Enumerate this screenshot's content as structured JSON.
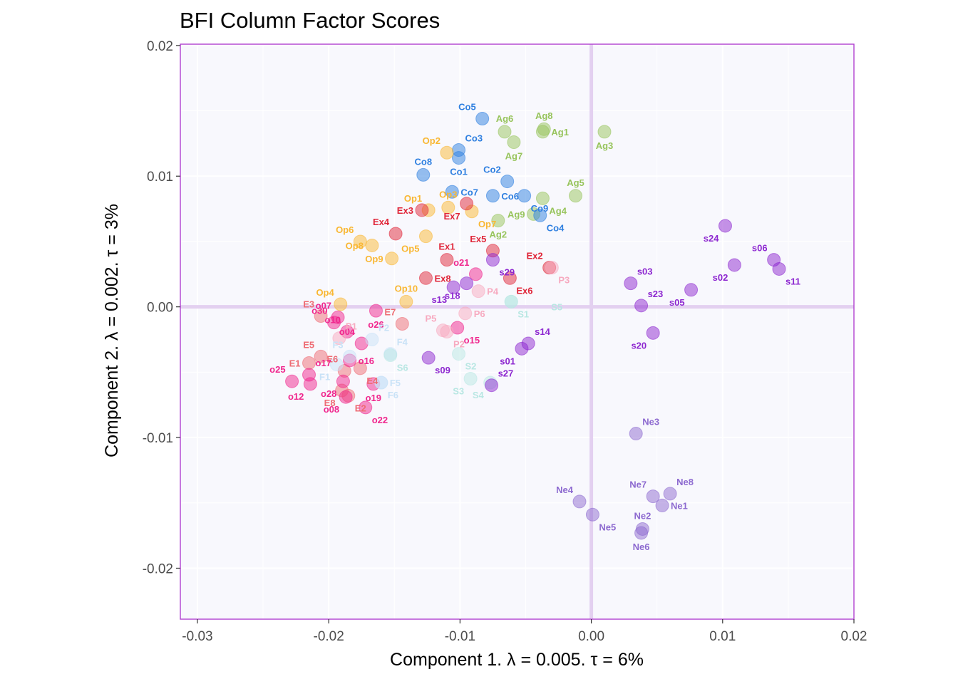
{
  "chart_data": {
    "type": "scatter",
    "title": "BFI Column Factor Scores",
    "xlabel": "Component 1.   λ = 0.005.  τ = 6%",
    "ylabel": "Component 2.   λ = 0.002.  τ = 3%",
    "xlim": [
      -0.0313,
      0.02
    ],
    "ylim": [
      -0.0239,
      0.0201
    ],
    "x_ticks": [
      -0.03,
      -0.02,
      -0.01,
      0.0,
      0.01,
      0.02
    ],
    "x_tick_labels": [
      "-0.03",
      "-0.02",
      "-0.01",
      "0.00",
      "0.01",
      "0.02"
    ],
    "y_ticks": [
      -0.02,
      -0.01,
      0.0,
      0.01,
      0.02
    ],
    "y_tick_labels": [
      "-0.02",
      "-0.01",
      "0.00",
      "0.01",
      "0.02"
    ],
    "grid": true,
    "reference_lines": {
      "x": 0,
      "y": 0,
      "color": "#e3d0f0"
    },
    "colors": {
      "panel_background": "#f8f8fd",
      "panel_border": "#b040d0",
      "grid": "#ffffff",
      "Ag": "#97c45c",
      "Co": "#2e7fe0",
      "Op": "#f9b733",
      "Ex": "#e0273a",
      "E": "#ee6c74",
      "o": "#f0268d",
      "P": "#f7aac0",
      "F": "#c9e2f7",
      "S": "#b9e7e3",
      "s": "#8d27d0",
      "Ne": "#8d6ad0"
    },
    "points": [
      {
        "label": "Ag1",
        "x": -0.0037,
        "y": 0.0134,
        "group": "Ag",
        "pos": "right"
      },
      {
        "label": "Ag3",
        "x": 0.001,
        "y": 0.0134,
        "group": "Ag",
        "pos": "below"
      },
      {
        "label": "Ag6",
        "x": -0.0066,
        "y": 0.0134,
        "group": "Ag",
        "pos": "above"
      },
      {
        "label": "Ag8",
        "x": -0.0036,
        "y": 0.0136,
        "group": "Ag",
        "pos": "above"
      },
      {
        "label": "Ag7",
        "x": -0.0059,
        "y": 0.0126,
        "group": "Ag",
        "pos": "below"
      },
      {
        "label": "Ag5",
        "x": -0.0012,
        "y": 0.0085,
        "group": "Ag",
        "pos": "above"
      },
      {
        "label": "Ag4",
        "x": -0.0037,
        "y": 0.0083,
        "group": "Ag",
        "pos": "below-right"
      },
      {
        "label": "Ag9",
        "x": -0.0044,
        "y": 0.0071,
        "group": "Ag",
        "pos": "left"
      },
      {
        "label": "Ag2",
        "x": -0.0071,
        "y": 0.0066,
        "group": "Ag",
        "pos": "below"
      },
      {
        "label": "Co5",
        "x": -0.0083,
        "y": 0.0144,
        "group": "Co",
        "pos": "above-left"
      },
      {
        "label": "Co3",
        "x": -0.0101,
        "y": 0.012,
        "group": "Co",
        "pos": "above-right"
      },
      {
        "label": "Co1",
        "x": -0.0101,
        "y": 0.0114,
        "group": "Co",
        "pos": "below"
      },
      {
        "label": "Co8",
        "x": -0.0128,
        "y": 0.0101,
        "group": "Co",
        "pos": "above"
      },
      {
        "label": "Co2",
        "x": -0.0064,
        "y": 0.0096,
        "group": "Co",
        "pos": "above-left"
      },
      {
        "label": "Co7",
        "x": -0.0106,
        "y": 0.0088,
        "group": "Co",
        "pos": "right"
      },
      {
        "label": "Co6",
        "x": -0.0075,
        "y": 0.0085,
        "group": "Co",
        "pos": "right"
      },
      {
        "label": "Co9",
        "x": -0.0051,
        "y": 0.0085,
        "group": "Co",
        "pos": "below-right"
      },
      {
        "label": "Co4",
        "x": -0.0039,
        "y": 0.007,
        "group": "Co",
        "pos": "below-right"
      },
      {
        "label": "Op2",
        "x": -0.011,
        "y": 0.0118,
        "group": "Op",
        "pos": "above-left"
      },
      {
        "label": "Op1",
        "x": -0.0124,
        "y": 0.0074,
        "group": "Op",
        "pos": "above-left"
      },
      {
        "label": "Op3",
        "x": -0.0109,
        "y": 0.0076,
        "group": "Op",
        "pos": "above"
      },
      {
        "label": "Op7",
        "x": -0.0091,
        "y": 0.0073,
        "group": "Op",
        "pos": "below-right"
      },
      {
        "label": "Op6",
        "x": -0.0176,
        "y": 0.005,
        "group": "Op",
        "pos": "above-left"
      },
      {
        "label": "Op8",
        "x": -0.0167,
        "y": 0.0047,
        "group": "Op",
        "pos": "left"
      },
      {
        "label": "Op5",
        "x": -0.0126,
        "y": 0.0054,
        "group": "Op",
        "pos": "below-left"
      },
      {
        "label": "Op9",
        "x": -0.0152,
        "y": 0.0037,
        "group": "Op",
        "pos": "left"
      },
      {
        "label": "Op10",
        "x": -0.0141,
        "y": 0.0004,
        "group": "Op",
        "pos": "above"
      },
      {
        "label": "Op4",
        "x": -0.0191,
        "y": 0.0002,
        "group": "Op",
        "pos": "above-left"
      },
      {
        "label": "Ex3",
        "x": -0.0129,
        "y": 0.0074,
        "group": "Ex",
        "pos": "left"
      },
      {
        "label": "Ex7",
        "x": -0.0095,
        "y": 0.0079,
        "group": "Ex",
        "pos": "below-left"
      },
      {
        "label": "Ex4",
        "x": -0.0149,
        "y": 0.0056,
        "group": "Ex",
        "pos": "above-left"
      },
      {
        "label": "Ex1",
        "x": -0.011,
        "y": 0.0036,
        "group": "Ex",
        "pos": "above"
      },
      {
        "label": "Ex5",
        "x": -0.0075,
        "y": 0.0043,
        "group": "Ex",
        "pos": "above-left"
      },
      {
        "label": "Ex2",
        "x": -0.0032,
        "y": 0.003,
        "group": "Ex",
        "pos": "above-left"
      },
      {
        "label": "Ex8",
        "x": -0.0126,
        "y": 0.0022,
        "group": "Ex",
        "pos": "right"
      },
      {
        "label": "Ex6",
        "x": -0.0062,
        "y": 0.0022,
        "group": "Ex",
        "pos": "below-right"
      },
      {
        "label": "E3",
        "x": -0.0206,
        "y": -0.0007,
        "group": "E",
        "pos": "above-left"
      },
      {
        "label": "E5",
        "x": -0.0206,
        "y": -0.0038,
        "group": "E",
        "pos": "above-left"
      },
      {
        "label": "E1",
        "x": -0.0215,
        "y": -0.0043,
        "group": "E",
        "pos": "left"
      },
      {
        "label": "E6",
        "x": -0.0188,
        "y": -0.0049,
        "group": "E",
        "pos": "above-left"
      },
      {
        "label": "E4",
        "x": -0.0176,
        "y": -0.0047,
        "group": "E",
        "pos": "below-right"
      },
      {
        "label": "E7",
        "x": -0.0144,
        "y": -0.0013,
        "group": "E",
        "pos": "above-left"
      },
      {
        "label": "E2",
        "x": -0.0185,
        "y": -0.0068,
        "group": "E",
        "pos": "below-right"
      },
      {
        "label": "E8",
        "x": -0.019,
        "y": -0.0064,
        "group": "E",
        "pos": "below-left"
      },
      {
        "label": "o30",
        "x": -0.0196,
        "y": -0.0012,
        "group": "o",
        "pos": "above-left"
      },
      {
        "label": "o10",
        "x": -0.0186,
        "y": -0.0019,
        "group": "o",
        "pos": "above-left"
      },
      {
        "label": "o07",
        "x": -0.0193,
        "y": -0.0008,
        "group": "o",
        "pos": "above-left"
      },
      {
        "label": "o04",
        "x": -0.0175,
        "y": -0.0028,
        "group": "o",
        "pos": "above-left"
      },
      {
        "label": "o17",
        "x": -0.0215,
        "y": -0.0052,
        "group": "o",
        "pos": "above-right"
      },
      {
        "label": "o16",
        "x": -0.0184,
        "y": -0.0041,
        "group": "o",
        "pos": "right"
      },
      {
        "label": "o25",
        "x": -0.0228,
        "y": -0.0057,
        "group": "o",
        "pos": "above-left"
      },
      {
        "label": "o12",
        "x": -0.0214,
        "y": -0.0059,
        "group": "o",
        "pos": "below-left"
      },
      {
        "label": "o28",
        "x": -0.0189,
        "y": -0.0057,
        "group": "o",
        "pos": "below-left"
      },
      {
        "label": "o08",
        "x": -0.0187,
        "y": -0.0069,
        "group": "o",
        "pos": "below-left"
      },
      {
        "label": "o22",
        "x": -0.0172,
        "y": -0.0077,
        "group": "o",
        "pos": "below-right"
      },
      {
        "label": "o19",
        "x": -0.0166,
        "y": -0.0059,
        "group": "o",
        "pos": "below"
      },
      {
        "label": "o26",
        "x": -0.0164,
        "y": -0.0003,
        "group": "o",
        "pos": "below"
      },
      {
        "label": "o15",
        "x": -0.0102,
        "y": -0.0016,
        "group": "o",
        "pos": "below-right"
      },
      {
        "label": "o21",
        "x": -0.0088,
        "y": 0.0025,
        "group": "o",
        "pos": "above-left"
      },
      {
        "label": "P1",
        "x": -0.0192,
        "y": -0.0024,
        "group": "P",
        "pos": "above-right"
      },
      {
        "label": "P5",
        "x": -0.0113,
        "y": -0.0018,
        "group": "P",
        "pos": "above-left"
      },
      {
        "label": "P2",
        "x": -0.011,
        "y": -0.0019,
        "group": "P",
        "pos": "below-right"
      },
      {
        "label": "P4",
        "x": -0.0086,
        "y": 0.0012,
        "group": "P",
        "pos": "right"
      },
      {
        "label": "P6",
        "x": -0.0096,
        "y": -0.0005,
        "group": "P",
        "pos": "right"
      },
      {
        "label": "P3",
        "x": -0.003,
        "y": 0.003,
        "group": "P",
        "pos": "below-right"
      },
      {
        "label": "F1",
        "x": -0.0194,
        "y": -0.0044,
        "group": "F",
        "pos": "below-left"
      },
      {
        "label": "F2",
        "x": -0.0167,
        "y": -0.0025,
        "group": "F",
        "pos": "above-right"
      },
      {
        "label": "F3",
        "x": -0.0184,
        "y": -0.0038,
        "group": "F",
        "pos": "above-left"
      },
      {
        "label": "F4",
        "x": -0.0153,
        "y": -0.0036,
        "group": "F",
        "pos": "above-right"
      },
      {
        "label": "F5",
        "x": -0.016,
        "y": -0.0058,
        "group": "F",
        "pos": "right"
      },
      {
        "label": "F6",
        "x": -0.016,
        "y": -0.0058,
        "group": "F",
        "pos": "below-right"
      },
      {
        "label": "S1",
        "x": -0.0061,
        "y": 0.0004,
        "group": "S",
        "pos": "below-right"
      },
      {
        "label": "S5",
        "x": -0.0061,
        "y": 0.0004,
        "group": "S",
        "pos": "far-right"
      },
      {
        "label": "S6",
        "x": -0.0153,
        "y": -0.0037,
        "group": "S",
        "pos": "below-right"
      },
      {
        "label": "S2",
        "x": -0.0101,
        "y": -0.0036,
        "group": "S",
        "pos": "below-right"
      },
      {
        "label": "S3",
        "x": -0.0092,
        "y": -0.0055,
        "group": "S",
        "pos": "below-left"
      },
      {
        "label": "S4",
        "x": -0.0077,
        "y": -0.0058,
        "group": "S",
        "pos": "below-left"
      },
      {
        "label": "s24",
        "x": 0.0102,
        "y": 0.0062,
        "group": "s",
        "pos": "below-left"
      },
      {
        "label": "s06",
        "x": 0.0139,
        "y": 0.0036,
        "group": "s",
        "pos": "above-left"
      },
      {
        "label": "s11",
        "x": 0.0143,
        "y": 0.0029,
        "group": "s",
        "pos": "below-right"
      },
      {
        "label": "s02",
        "x": 0.0109,
        "y": 0.0032,
        "group": "s",
        "pos": "below-left"
      },
      {
        "label": "s05",
        "x": 0.0076,
        "y": 0.0013,
        "group": "s",
        "pos": "below-left"
      },
      {
        "label": "s03",
        "x": 0.003,
        "y": 0.0018,
        "group": "s",
        "pos": "above-right"
      },
      {
        "label": "s23",
        "x": 0.0038,
        "y": 0.0001,
        "group": "s",
        "pos": "above-right"
      },
      {
        "label": "s20",
        "x": 0.0047,
        "y": -0.002,
        "group": "s",
        "pos": "below-left"
      },
      {
        "label": "s29",
        "x": -0.0075,
        "y": 0.0036,
        "group": "s",
        "pos": "below-right"
      },
      {
        "label": "s13",
        "x": -0.0105,
        "y": 0.0015,
        "group": "s",
        "pos": "below-left"
      },
      {
        "label": "s18",
        "x": -0.0095,
        "y": 0.0018,
        "group": "s",
        "pos": "below-left"
      },
      {
        "label": "s14",
        "x": -0.0048,
        "y": -0.0028,
        "group": "s",
        "pos": "above-right"
      },
      {
        "label": "s01",
        "x": -0.0053,
        "y": -0.0032,
        "group": "s",
        "pos": "below-left"
      },
      {
        "label": "s09",
        "x": -0.0124,
        "y": -0.0039,
        "group": "s",
        "pos": "below-right"
      },
      {
        "label": "s27",
        "x": -0.0076,
        "y": -0.006,
        "group": "s",
        "pos": "above-right"
      },
      {
        "label": "Ne3",
        "x": 0.0034,
        "y": -0.0097,
        "group": "Ne",
        "pos": "above-right"
      },
      {
        "label": "Ne4",
        "x": -0.0009,
        "y": -0.0149,
        "group": "Ne",
        "pos": "above-left"
      },
      {
        "label": "Ne5",
        "x": 0.0001,
        "y": -0.0159,
        "group": "Ne",
        "pos": "below-right"
      },
      {
        "label": "Ne7",
        "x": 0.0047,
        "y": -0.0145,
        "group": "Ne",
        "pos": "above-left"
      },
      {
        "label": "Ne8",
        "x": 0.006,
        "y": -0.0143,
        "group": "Ne",
        "pos": "above-right"
      },
      {
        "label": "Ne1",
        "x": 0.0054,
        "y": -0.0152,
        "group": "Ne",
        "pos": "right"
      },
      {
        "label": "Ne2",
        "x": 0.0039,
        "y": -0.017,
        "group": "Ne",
        "pos": "above"
      },
      {
        "label": "Ne6",
        "x": 0.0038,
        "y": -0.0173,
        "group": "Ne",
        "pos": "below"
      }
    ]
  }
}
